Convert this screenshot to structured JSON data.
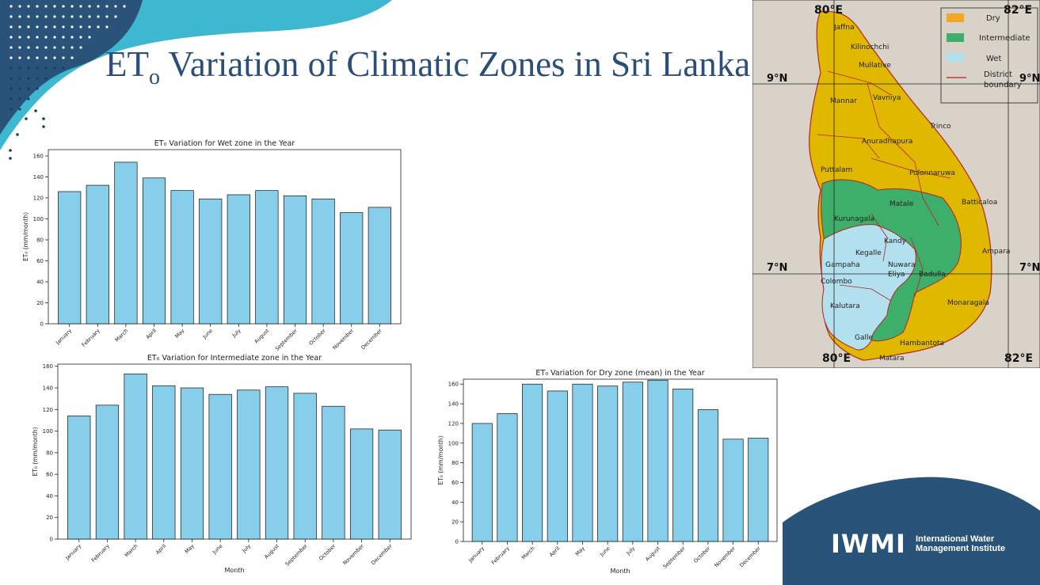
{
  "slide": {
    "title_main": "ET",
    "title_sub": "o",
    "title_rest": " Variation of Climatic Zones in Sri Lanka"
  },
  "colors": {
    "bar_fill": "#87ceeb",
    "title": "#2b4f78",
    "teal": "#3eb8d1",
    "navy": "#2a537a",
    "dry": "#e1b800",
    "intermediate": "#3daf6b",
    "wet": "#b3e0ef"
  },
  "chart_data": [
    {
      "id": "wet",
      "type": "bar",
      "title": "ET₀ Variation for Wet zone in the Year",
      "xlabel": "",
      "ylabel": "ET₀ (mm/month)",
      "categories": [
        "January",
        "February",
        "March",
        "April",
        "May",
        "June",
        "July",
        "August",
        "September",
        "October",
        "November",
        "December"
      ],
      "values": [
        126,
        132,
        154,
        139,
        127,
        119,
        123,
        127,
        122,
        119,
        106,
        111
      ],
      "ylim": [
        0,
        166
      ],
      "yticks": [
        0,
        20,
        40,
        60,
        80,
        100,
        120,
        140,
        160
      ]
    },
    {
      "id": "intermediate",
      "type": "bar",
      "title": "ET₀ Variation for Intermediate zone in the Year",
      "xlabel": "Month",
      "ylabel": "ET₀ (mm/month)",
      "categories": [
        "January",
        "February",
        "March",
        "April",
        "May",
        "June",
        "July",
        "August",
        "September",
        "October",
        "November",
        "December"
      ],
      "values": [
        114,
        124,
        153,
        142,
        140,
        134,
        138,
        141,
        135,
        123,
        102,
        101
      ],
      "ylim": [
        0,
        162
      ],
      "yticks": [
        0,
        20,
        40,
        60,
        80,
        100,
        120,
        140,
        160
      ]
    },
    {
      "id": "dry",
      "type": "bar",
      "title": "ET₀ Variation for Dry zone (mean) in the Year",
      "xlabel": "Month",
      "ylabel": "ET₀ (mm/month)",
      "categories": [
        "January",
        "February",
        "March",
        "April",
        "May",
        "June",
        "July",
        "August",
        "September",
        "October",
        "November",
        "December"
      ],
      "values": [
        120,
        130,
        160,
        153,
        160,
        158,
        162,
        164,
        155,
        134,
        104,
        105
      ],
      "ylim": [
        0,
        165
      ],
      "yticks": [
        0,
        20,
        40,
        60,
        80,
        100,
        120,
        140,
        160
      ]
    }
  ],
  "map": {
    "coords": {
      "top_left": "80°E",
      "top_right": "82°E",
      "bottom_left": "80°E",
      "bottom_right": "82°E",
      "lat_9_left": "9°N",
      "lat_9_right": "9°N",
      "lat_7_left": "7°N",
      "lat_7_right": "7°N"
    },
    "legend": {
      "dry": "Dry",
      "intermediate": "Intermediate",
      "wet": "Wet",
      "boundary_1": "District",
      "boundary_2": "boundary"
    },
    "districts": [
      "Jaffna",
      "Kilinochchi",
      "Mullative",
      "Vavniya",
      "Mannar",
      "Trinco",
      "Anuradhapura",
      "Puttalam",
      "Polonnaruwa",
      "Batticaloa",
      "Matale",
      "Kurunagala",
      "Kandy",
      "Kegalle",
      "Nuwara",
      "Eliya",
      "Gampaha",
      "Ampara",
      "Badulla",
      "Colombo",
      "Monaragala",
      "Kalutara",
      "Galle",
      "Hambantota",
      "Matara"
    ]
  },
  "logo": {
    "mark": "IWMI",
    "org_line1": "International Water",
    "org_line2": "Management Institute"
  }
}
